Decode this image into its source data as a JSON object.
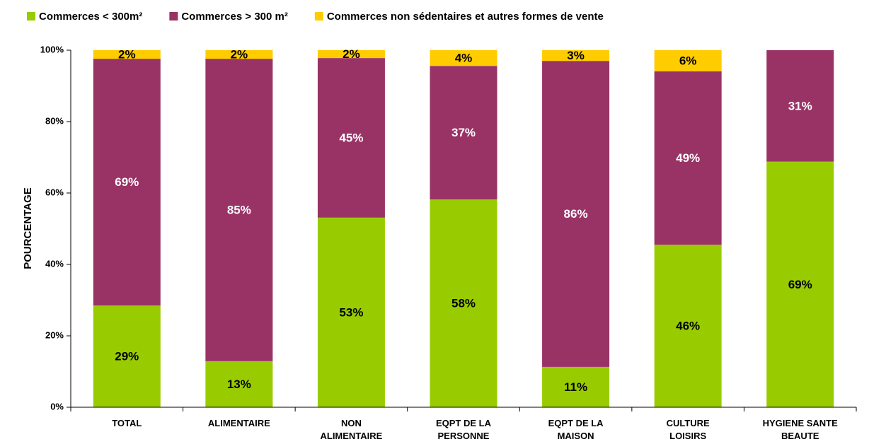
{
  "chart_data": {
    "type": "stacked_bar",
    "y_label": "POURCENTAGE",
    "categories": [
      "TOTAL",
      "ALIMENTAIRE",
      "NON\nALIMENTAIRE",
      "EQPT DE LA\nPERSONNE",
      "EQPT DE LA\nMAISON",
      "CULTURE\nLOISIRS",
      "HYGIENE SANTE\nBEAUTE"
    ],
    "series": [
      {
        "name": "Commerces < 300m²",
        "color": "#99cc00",
        "label_color": "#000000",
        "values": [
          28.5,
          12.9,
          53.1,
          58.2,
          11.3,
          45.5,
          68.8
        ],
        "value_labels": [
          "29%",
          "13%",
          "53%",
          "58%",
          "11%",
          "46%",
          "69%"
        ]
      },
      {
        "name": "Commerces > 300 m²",
        "color": "#993366",
        "label_color": "#ffffff",
        "values": [
          69.1,
          84.7,
          44.7,
          37.4,
          85.7,
          48.6,
          31.2
        ],
        "value_labels": [
          "69%",
          "85%",
          "45%",
          "37%",
          "86%",
          "49%",
          "31%"
        ]
      },
      {
        "name": "Commerces non sédentaires et autres formes de vente",
        "color": "#ffcc00",
        "label_color": "#000000",
        "values": [
          2.4,
          2.4,
          2.2,
          4.4,
          3.0,
          5.9,
          null
        ],
        "value_labels": [
          "2%",
          "2%",
          "2%",
          "4%",
          "3%",
          "6%",
          null
        ]
      }
    ],
    "ylim": [
      0,
      100
    ],
    "yticks": [
      {
        "value": 0,
        "label": "0%"
      },
      {
        "value": 20,
        "label": "20%"
      },
      {
        "value": 40,
        "label": "40%"
      },
      {
        "value": 60,
        "label": "60%"
      },
      {
        "value": 80,
        "label": "80%"
      },
      {
        "value": 100,
        "label": "100%"
      }
    ],
    "legend": "top"
  }
}
